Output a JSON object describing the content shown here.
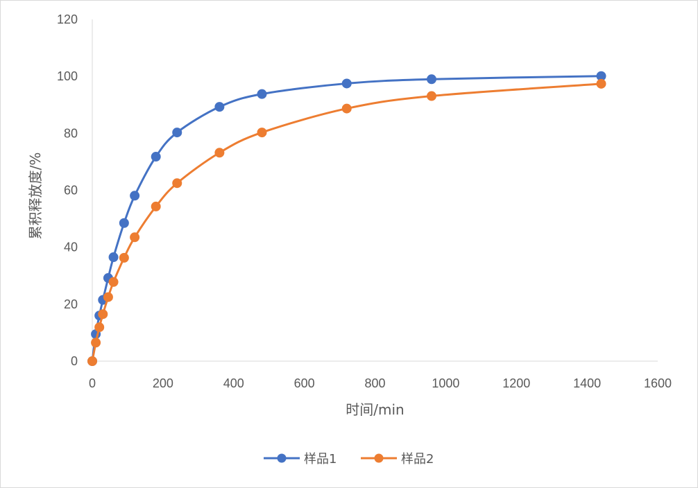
{
  "chart_data": {
    "type": "scatter",
    "title": "",
    "xlabel": "时间/min",
    "ylabel": "累积释放度/%",
    "xlim": [
      0,
      1600
    ],
    "ylim": [
      0,
      120
    ],
    "xticks": [
      0,
      200,
      400,
      600,
      800,
      1000,
      1200,
      1400,
      1600
    ],
    "yticks": [
      0,
      20,
      40,
      60,
      80,
      100,
      120
    ],
    "grid": false,
    "smooth_lines": true,
    "legend_position": "bottom",
    "series": [
      {
        "name": "样品1",
        "color": "#4472C4",
        "x": [
          0,
          10,
          20,
          30,
          45,
          60,
          90,
          120,
          180,
          240,
          360,
          480,
          720,
          960,
          1440
        ],
        "y": [
          0,
          9.5,
          16,
          21.5,
          29.2,
          36.5,
          48.5,
          58.1,
          71.8,
          80.3,
          89.3,
          93.8,
          97.5,
          99,
          100.1
        ]
      },
      {
        "name": "样品2",
        "color": "#ED7D31",
        "x": [
          0,
          10,
          20,
          30,
          45,
          60,
          90,
          120,
          180,
          240,
          360,
          480,
          720,
          960,
          1440
        ],
        "y": [
          0,
          6.5,
          11.9,
          16.5,
          22.5,
          27.8,
          36.3,
          43.5,
          54.3,
          62.5,
          73.2,
          80.3,
          88.7,
          93.1,
          97.4
        ]
      }
    ]
  }
}
